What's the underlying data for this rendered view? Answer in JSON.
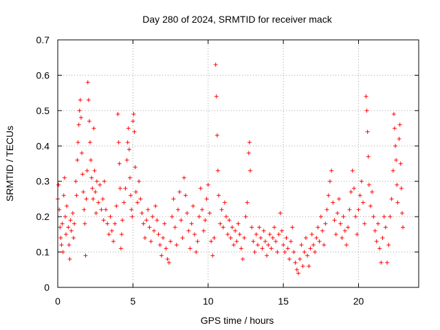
{
  "chart_data": {
    "type": "scatter",
    "title": "Day 280 of 2024, SRMTID for receiver mack",
    "xlabel": "GPS time / hours",
    "ylabel": "SRMTID / TECUs",
    "xlim": [
      0,
      24
    ],
    "ylim": [
      0,
      0.7
    ],
    "xticks": [
      0,
      5,
      10,
      15,
      20
    ],
    "xtick_labels": [
      "0",
      "5",
      "10",
      "15",
      "20"
    ],
    "yticks": [
      0,
      0.1,
      0.2,
      0.3,
      0.4,
      0.5,
      0.6,
      0.7
    ],
    "ytick_labels": [
      "0",
      "0.1",
      "0.2",
      "0.3",
      "0.4",
      "0.5",
      "0.6",
      "0.7"
    ],
    "grid": true,
    "marker": "plus",
    "series": [
      {
        "name": "SRMTID",
        "color": "#ff0000",
        "points": [
          [
            0.0,
            0.25
          ],
          [
            0.05,
            0.29
          ],
          [
            0.1,
            0.22
          ],
          [
            0.15,
            0.17
          ],
          [
            0.2,
            0.14
          ],
          [
            0.25,
            0.12
          ],
          [
            0.3,
            0.18
          ],
          [
            0.35,
            0.1
          ],
          [
            0.4,
            0.26
          ],
          [
            0.45,
            0.31
          ],
          [
            0.5,
            0.2
          ],
          [
            0.55,
            0.15
          ],
          [
            0.6,
            0.23
          ],
          [
            0.7,
            0.17
          ],
          [
            0.75,
            0.12
          ],
          [
            0.8,
            0.08
          ],
          [
            0.85,
            0.19
          ],
          [
            0.9,
            0.16
          ],
          [
            1.0,
            0.21
          ],
          [
            1.05,
            0.14
          ],
          [
            1.1,
            0.18
          ],
          [
            1.2,
            0.3
          ],
          [
            1.25,
            0.26
          ],
          [
            1.3,
            0.36
          ],
          [
            1.35,
            0.41
          ],
          [
            1.4,
            0.46
          ],
          [
            1.45,
            0.5
          ],
          [
            1.5,
            0.53
          ],
          [
            1.55,
            0.48
          ],
          [
            1.6,
            0.38
          ],
          [
            1.65,
            0.32
          ],
          [
            1.7,
            0.27
          ],
          [
            1.75,
            0.22
          ],
          [
            1.8,
            0.18
          ],
          [
            1.85,
            0.09
          ],
          [
            1.9,
            0.25
          ],
          [
            1.95,
            0.33
          ],
          [
            2.0,
            0.58
          ],
          [
            2.05,
            0.53
          ],
          [
            2.1,
            0.47
          ],
          [
            2.15,
            0.41
          ],
          [
            2.2,
            0.36
          ],
          [
            2.25,
            0.31
          ],
          [
            2.3,
            0.28
          ],
          [
            2.35,
            0.25
          ],
          [
            2.4,
            0.45
          ],
          [
            2.45,
            0.33
          ],
          [
            2.5,
            0.27
          ],
          [
            2.55,
            0.21
          ],
          [
            2.6,
            0.3
          ],
          [
            2.7,
            0.24
          ],
          [
            2.8,
            0.29
          ],
          [
            2.9,
            0.22
          ],
          [
            3.0,
            0.25
          ],
          [
            3.05,
            0.19
          ],
          [
            3.1,
            0.3
          ],
          [
            3.2,
            0.22
          ],
          [
            3.3,
            0.18
          ],
          [
            3.4,
            0.15
          ],
          [
            3.5,
            0.2
          ],
          [
            3.6,
            0.16
          ],
          [
            3.7,
            0.13
          ],
          [
            3.8,
            0.18
          ],
          [
            3.9,
            0.23
          ],
          [
            4.0,
            0.49
          ],
          [
            4.05,
            0.41
          ],
          [
            4.1,
            0.35
          ],
          [
            4.15,
            0.28
          ],
          [
            4.2,
            0.11
          ],
          [
            4.25,
            0.15
          ],
          [
            4.3,
            0.19
          ],
          [
            4.4,
            0.24
          ],
          [
            4.5,
            0.28
          ],
          [
            4.6,
            0.36
          ],
          [
            4.65,
            0.41
          ],
          [
            4.7,
            0.45
          ],
          [
            4.75,
            0.39
          ],
          [
            4.8,
            0.31
          ],
          [
            4.85,
            0.26
          ],
          [
            4.9,
            0.22
          ],
          [
            4.95,
            0.2
          ],
          [
            5.0,
            0.47
          ],
          [
            5.05,
            0.49
          ],
          [
            5.1,
            0.44
          ],
          [
            5.15,
            0.34
          ],
          [
            5.2,
            0.27
          ],
          [
            5.3,
            0.24
          ],
          [
            5.4,
            0.3
          ],
          [
            5.5,
            0.25
          ],
          [
            5.6,
            0.21
          ],
          [
            5.7,
            0.18
          ],
          [
            5.8,
            0.14
          ],
          [
            5.9,
            0.19
          ],
          [
            6.0,
            0.22
          ],
          [
            6.1,
            0.17
          ],
          [
            6.2,
            0.13
          ],
          [
            6.3,
            0.2
          ],
          [
            6.4,
            0.16
          ],
          [
            6.5,
            0.23
          ],
          [
            6.6,
            0.19
          ],
          [
            6.7,
            0.15
          ],
          [
            6.8,
            0.12
          ],
          [
            6.9,
            0.09
          ],
          [
            7.0,
            0.14
          ],
          [
            7.1,
            0.18
          ],
          [
            7.2,
            0.11
          ],
          [
            7.3,
            0.08
          ],
          [
            7.4,
            0.07
          ],
          [
            7.5,
            0.13
          ],
          [
            7.6,
            0.2
          ],
          [
            7.7,
            0.25
          ],
          [
            7.8,
            0.17
          ],
          [
            7.9,
            0.12
          ],
          [
            8.0,
            0.22
          ],
          [
            8.1,
            0.27
          ],
          [
            8.2,
            0.19
          ],
          [
            8.3,
            0.14
          ],
          [
            8.4,
            0.31
          ],
          [
            8.5,
            0.26
          ],
          [
            8.6,
            0.21
          ],
          [
            8.7,
            0.16
          ],
          [
            8.8,
            0.11
          ],
          [
            8.9,
            0.18
          ],
          [
            9.0,
            0.23
          ],
          [
            9.1,
            0.15
          ],
          [
            9.2,
            0.1
          ],
          [
            9.3,
            0.13
          ],
          [
            9.4,
            0.2
          ],
          [
            9.5,
            0.28
          ],
          [
            9.6,
            0.22
          ],
          [
            9.7,
            0.16
          ],
          [
            9.8,
            0.19
          ],
          [
            9.9,
            0.25
          ],
          [
            10.0,
            0.29
          ],
          [
            10.1,
            0.21
          ],
          [
            10.2,
            0.13
          ],
          [
            10.3,
            0.09
          ],
          [
            10.4,
            0.14
          ],
          [
            10.5,
            0.63
          ],
          [
            10.55,
            0.54
          ],
          [
            10.6,
            0.43
          ],
          [
            10.65,
            0.33
          ],
          [
            10.7,
            0.26
          ],
          [
            10.8,
            0.18
          ],
          [
            10.9,
            0.22
          ],
          [
            11.0,
            0.17
          ],
          [
            11.1,
            0.24
          ],
          [
            11.2,
            0.2
          ],
          [
            11.3,
            0.15
          ],
          [
            11.4,
            0.19
          ],
          [
            11.5,
            0.14
          ],
          [
            11.6,
            0.17
          ],
          [
            11.7,
            0.12
          ],
          [
            11.8,
            0.16
          ],
          [
            11.9,
            0.13
          ],
          [
            12.0,
            0.18
          ],
          [
            12.1,
            0.15
          ],
          [
            12.2,
            0.11
          ],
          [
            12.3,
            0.08
          ],
          [
            12.4,
            0.14
          ],
          [
            12.5,
            0.2
          ],
          [
            12.6,
            0.24
          ],
          [
            12.7,
            0.38
          ],
          [
            12.75,
            0.41
          ],
          [
            12.8,
            0.33
          ],
          [
            12.9,
            0.17
          ],
          [
            13.0,
            0.13
          ],
          [
            13.1,
            0.1
          ],
          [
            13.2,
            0.15
          ],
          [
            13.3,
            0.12
          ],
          [
            13.4,
            0.17
          ],
          [
            13.5,
            0.14
          ],
          [
            13.6,
            0.11
          ],
          [
            13.7,
            0.16
          ],
          [
            13.8,
            0.13
          ],
          [
            13.9,
            0.09
          ],
          [
            14.0,
            0.12
          ],
          [
            14.1,
            0.15
          ],
          [
            14.2,
            0.11
          ],
          [
            14.3,
            0.14
          ],
          [
            14.4,
            0.17
          ],
          [
            14.5,
            0.13
          ],
          [
            14.6,
            0.1
          ],
          [
            14.7,
            0.15
          ],
          [
            14.8,
            0.21
          ],
          [
            14.9,
            0.16
          ],
          [
            15.0,
            0.12
          ],
          [
            15.1,
            0.1
          ],
          [
            15.2,
            0.14
          ],
          [
            15.3,
            0.11
          ],
          [
            15.4,
            0.08
          ],
          [
            15.5,
            0.13
          ],
          [
            15.6,
            0.17
          ],
          [
            15.7,
            0.1
          ],
          [
            15.8,
            0.07
          ],
          [
            15.9,
            0.05
          ],
          [
            16.0,
            0.04
          ],
          [
            16.1,
            0.08
          ],
          [
            16.2,
            0.12
          ],
          [
            16.3,
            0.06
          ],
          [
            16.4,
            0.1
          ],
          [
            16.5,
            0.14
          ],
          [
            16.6,
            0.09
          ],
          [
            16.7,
            0.06
          ],
          [
            16.8,
            0.11
          ],
          [
            16.9,
            0.15
          ],
          [
            17.0,
            0.12
          ],
          [
            17.1,
            0.1
          ],
          [
            17.2,
            0.14
          ],
          [
            17.3,
            0.17
          ],
          [
            17.4,
            0.13
          ],
          [
            17.5,
            0.2
          ],
          [
            17.6,
            0.16
          ],
          [
            17.7,
            0.12
          ],
          [
            17.8,
            0.18
          ],
          [
            17.9,
            0.22
          ],
          [
            18.0,
            0.26
          ],
          [
            18.1,
            0.3
          ],
          [
            18.2,
            0.33
          ],
          [
            18.3,
            0.24
          ],
          [
            18.4,
            0.19
          ],
          [
            18.5,
            0.15
          ],
          [
            18.6,
            0.21
          ],
          [
            18.7,
            0.25
          ],
          [
            18.8,
            0.18
          ],
          [
            18.9,
            0.14
          ],
          [
            19.0,
            0.2
          ],
          [
            19.1,
            0.16
          ],
          [
            19.2,
            0.12
          ],
          [
            19.3,
            0.17
          ],
          [
            19.4,
            0.22
          ],
          [
            19.5,
            0.27
          ],
          [
            19.6,
            0.33
          ],
          [
            19.7,
            0.28
          ],
          [
            19.8,
            0.2
          ],
          [
            19.9,
            0.15
          ],
          [
            20.0,
            0.22
          ],
          [
            20.1,
            0.26
          ],
          [
            20.2,
            0.3
          ],
          [
            20.3,
            0.24
          ],
          [
            20.4,
            0.18
          ],
          [
            20.5,
            0.54
          ],
          [
            20.55,
            0.5
          ],
          [
            20.6,
            0.44
          ],
          [
            20.65,
            0.37
          ],
          [
            20.7,
            0.29
          ],
          [
            20.8,
            0.23
          ],
          [
            20.9,
            0.27
          ],
          [
            21.0,
            0.2
          ],
          [
            21.1,
            0.16
          ],
          [
            21.2,
            0.13
          ],
          [
            21.3,
            0.18
          ],
          [
            21.4,
            0.11
          ],
          [
            21.5,
            0.07
          ],
          [
            21.6,
            0.14
          ],
          [
            21.7,
            0.2
          ],
          [
            21.8,
            0.17
          ],
          [
            21.9,
            0.07
          ],
          [
            22.0,
            0.12
          ],
          [
            22.1,
            0.2
          ],
          [
            22.2,
            0.25
          ],
          [
            22.3,
            0.33
          ],
          [
            22.35,
            0.49
          ],
          [
            22.4,
            0.45
          ],
          [
            22.45,
            0.4
          ],
          [
            22.5,
            0.36
          ],
          [
            22.55,
            0.29
          ],
          [
            22.6,
            0.24
          ],
          [
            22.7,
            0.42
          ],
          [
            22.75,
            0.46
          ],
          [
            22.8,
            0.35
          ],
          [
            22.85,
            0.28
          ],
          [
            22.9,
            0.21
          ],
          [
            22.95,
            0.17
          ]
        ]
      }
    ]
  }
}
